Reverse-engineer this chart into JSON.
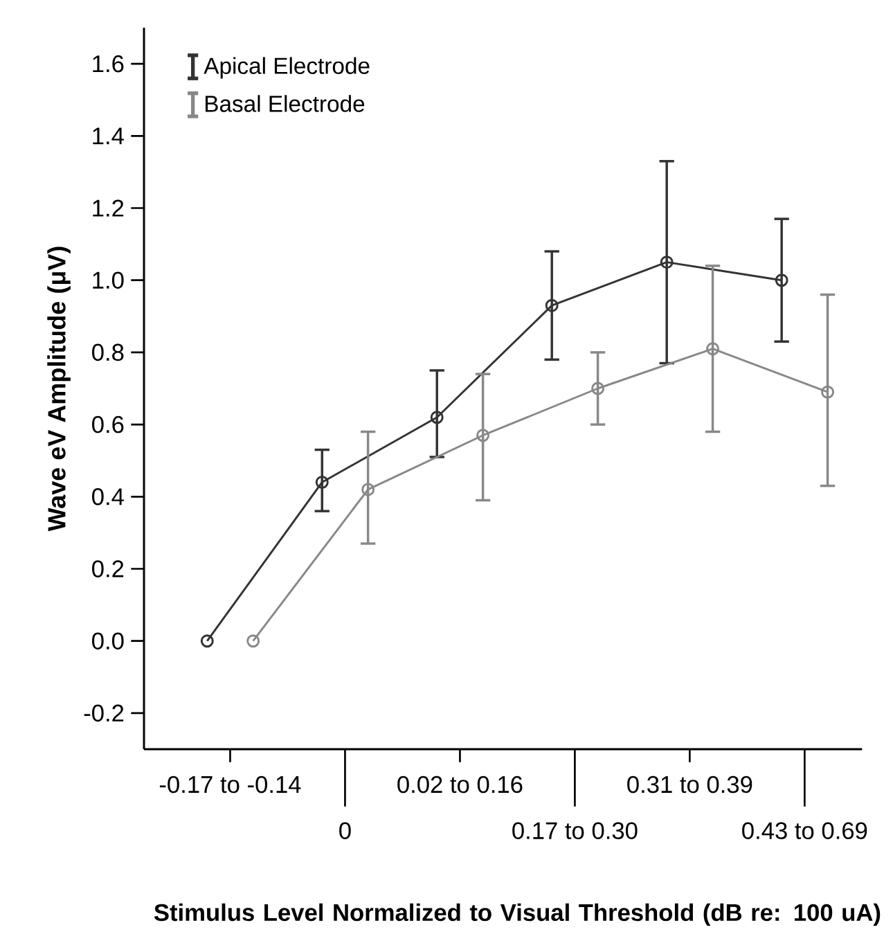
{
  "chart_data": {
    "type": "line",
    "xlabel": "Stimulus Level Normalized to Visual Threshold (dB re: 100 uA)",
    "ylabel": "Wave eV Amplitude (μV)",
    "categories": [
      "-0.17 to -0.14",
      "0",
      "0.02 to 0.16",
      "0.17 to 0.30",
      "0.31 to 0.39",
      "0.43 to 0.69"
    ],
    "series": [
      {
        "name": "Apical Electrode",
        "color": "#333333",
        "values": [
          0.0,
          0.44,
          0.62,
          0.93,
          1.05,
          1.0
        ],
        "errors": [
          null,
          [
            0.36,
            0.53
          ],
          [
            0.51,
            0.75
          ],
          [
            0.78,
            1.08
          ],
          [
            0.77,
            1.33
          ],
          [
            0.83,
            1.17
          ]
        ]
      },
      {
        "name": "Basal Electrode",
        "color": "#888888",
        "values": [
          0.0,
          0.42,
          0.57,
          0.7,
          0.81,
          0.69
        ],
        "errors": [
          null,
          [
            0.27,
            0.58
          ],
          [
            0.39,
            0.74
          ],
          [
            0.6,
            0.8
          ],
          [
            0.58,
            1.04
          ],
          [
            0.43,
            0.96
          ]
        ]
      }
    ],
    "ylim": [
      -0.3,
      1.7
    ],
    "yticks": [
      -0.2,
      {
        "value": 0,
        "label": "0.0"
      },
      0.2,
      0.4,
      0.6,
      0.8,
      {
        "value": 1,
        "label": "1.0"
      },
      1.2,
      1.4,
      1.6
    ],
    "marker": "circle",
    "line_style": "solid",
    "legend": "top left"
  }
}
